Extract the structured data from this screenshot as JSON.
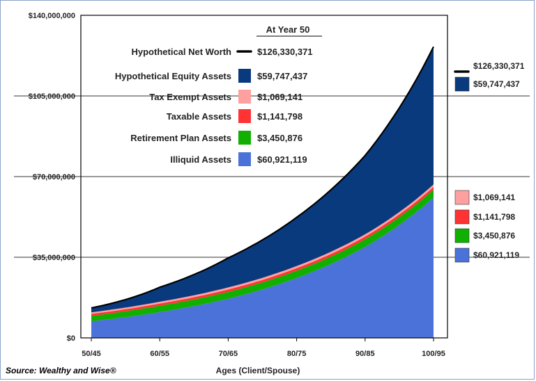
{
  "chart_data": {
    "type": "area",
    "stacked": true,
    "xlabel": "Ages (Client/Spouse)",
    "x_ticks": [
      "50/45",
      "60/55",
      "70/65",
      "80/75",
      "90/85",
      "100/95"
    ],
    "y_ticks": [
      "$140,000,000",
      "$105,000,000",
      "$70,000,000",
      "$35,000,000",
      "$0"
    ],
    "ylim": [
      0,
      140000000
    ],
    "x_years": [
      0,
      10,
      20,
      30,
      40,
      50
    ],
    "series": [
      {
        "name": "Illiquid Assets",
        "color": "#4a72d8",
        "values": [
          7200000,
          11200000,
          17000000,
          26000000,
          39500000,
          60921119
        ]
      },
      {
        "name": "Retirement Plan Assets",
        "color": "#11b000",
        "values": [
          2400000,
          2800000,
          3000000,
          3200000,
          3350000,
          3450876
        ]
      },
      {
        "name": "Taxable Assets",
        "color": "#ff3333",
        "values": [
          800000,
          900000,
          1000000,
          1050000,
          1100000,
          1141798
        ]
      },
      {
        "name": "Tax Exempt Assets",
        "color": "#ffa0a0",
        "values": [
          700000,
          800000,
          900000,
          950000,
          1000000,
          1069141
        ]
      },
      {
        "name": "Hypothetical Equity Assets",
        "color": "#0a3a7e",
        "values": [
          1900000,
          6300000,
          12800000,
          21100000,
          34200000,
          59747437
        ]
      }
    ],
    "net_worth": {
      "name": "Hypothetical Net Worth",
      "color": "#000000",
      "values": [
        13000000,
        22000000,
        34700000,
        52300000,
        79150000,
        126330371
      ]
    },
    "legend": {
      "header": "At Year 50",
      "rows": [
        {
          "label": "Hypothetical Net Worth",
          "value": "$126,330,371",
          "swatch": "line",
          "color": "#000000"
        },
        {
          "label": "Hypothetical Equity Assets",
          "value": "$59,747,437",
          "swatch": "box",
          "color": "#0a3a7e"
        },
        {
          "label": "Tax Exempt Assets",
          "value": "$1,069,141",
          "swatch": "box",
          "color": "#ffa0a0"
        },
        {
          "label": "Taxable Assets",
          "value": "$1,141,798",
          "swatch": "box",
          "color": "#ff3333"
        },
        {
          "label": "Retirement Plan Assets",
          "value": "$3,450,876",
          "swatch": "box",
          "color": "#11b000"
        },
        {
          "label": "Illiquid Assets",
          "value": "$60,921,119",
          "swatch": "box",
          "color": "#4a72d8"
        }
      ]
    },
    "right_labels": [
      {
        "value": "$126,330,371",
        "swatch": "line",
        "color": "#000000"
      },
      {
        "value": "$59,747,437",
        "swatch": "box",
        "color": "#0a3a7e"
      },
      {
        "value": "$1,069,141",
        "swatch": "box",
        "color": "#ffa0a0"
      },
      {
        "value": "$1,141,798",
        "swatch": "box",
        "color": "#ff3333"
      },
      {
        "value": "$3,450,876",
        "swatch": "box",
        "color": "#11b000"
      },
      {
        "value": "$60,921,119",
        "swatch": "box",
        "color": "#4a72d8"
      }
    ],
    "grid": "horizontal"
  },
  "source": "Source: Wealthy and Wise®"
}
